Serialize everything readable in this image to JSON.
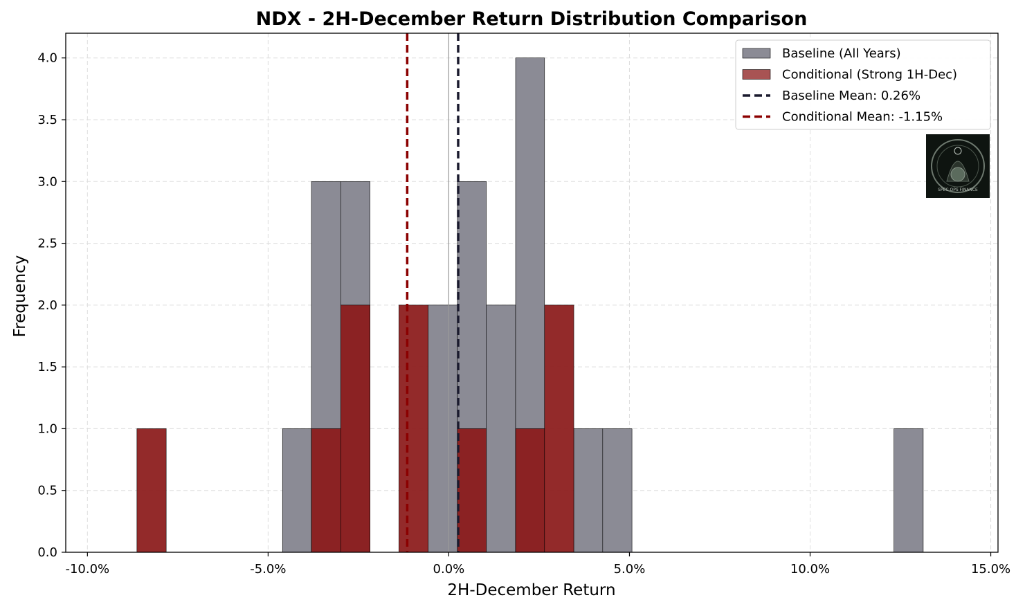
{
  "chart_data": {
    "type": "bar",
    "title": "NDX - 2H-December Return Distribution Comparison",
    "xlabel": "2H-December Return",
    "ylabel": "Frequency",
    "xlim": [
      -10.6,
      15.2
    ],
    "ylim": [
      0,
      4.2
    ],
    "x_ticks": [
      -10,
      -5,
      0,
      5,
      10,
      15
    ],
    "x_tick_labels": [
      "-10.0%",
      "-5.0%",
      "0.0%",
      "5.0%",
      "10.0%",
      "15.0%"
    ],
    "y_ticks": [
      0,
      0.5,
      1,
      1.5,
      2,
      2.5,
      3,
      3.5,
      4
    ],
    "y_tick_labels": [
      "0.0",
      "0.5",
      "1.0",
      "1.5",
      "2.0",
      "2.5",
      "3.0",
      "3.5",
      "4.0"
    ],
    "grid": true,
    "legend_position": "upper-right",
    "series": [
      {
        "name": "Baseline (All Years)",
        "color": "#8b8b95",
        "bins": [
          {
            "x0": -4.6,
            "x1": -3.8,
            "count": 1
          },
          {
            "x0": -3.8,
            "x1": -2.99,
            "count": 3
          },
          {
            "x0": -2.99,
            "x1": -2.18,
            "count": 3
          },
          {
            "x0": -0.57,
            "x1": 0.24,
            "count": 2
          },
          {
            "x0": 0.24,
            "x1": 1.04,
            "count": 3
          },
          {
            "x0": 1.04,
            "x1": 1.85,
            "count": 2
          },
          {
            "x0": 1.85,
            "x1": 2.65,
            "count": 4
          },
          {
            "x0": 3.46,
            "x1": 4.26,
            "count": 1
          },
          {
            "x0": 4.26,
            "x1": 5.07,
            "count": 1
          },
          {
            "x0": 12.32,
            "x1": 13.13,
            "count": 1
          }
        ]
      },
      {
        "name": "Conditional (Strong 1H-Dec)",
        "color": "#8b1a1a",
        "bins": [
          {
            "x0": -8.63,
            "x1": -7.82,
            "count": 1
          },
          {
            "x0": -3.8,
            "x1": -2.99,
            "count": 1
          },
          {
            "x0": -2.99,
            "x1": -2.18,
            "count": 2
          },
          {
            "x0": -1.38,
            "x1": -0.57,
            "count": 2
          },
          {
            "x0": 0.24,
            "x1": 1.04,
            "count": 1
          },
          {
            "x0": 1.85,
            "x1": 2.65,
            "count": 1
          },
          {
            "x0": 2.65,
            "x1": 3.46,
            "count": 2
          }
        ]
      }
    ],
    "mean_lines": [
      {
        "name": "Baseline Mean: 0.26%",
        "x": 0.26,
        "color": "#1a1a2e"
      },
      {
        "name": "Conditional Mean: -1.15%",
        "x": -1.15,
        "color": "#8b0000"
      }
    ],
    "zero_line": {
      "x": 0,
      "color": "#999999"
    }
  },
  "watermark": {
    "label": "SPEC OPS FINANCE"
  }
}
